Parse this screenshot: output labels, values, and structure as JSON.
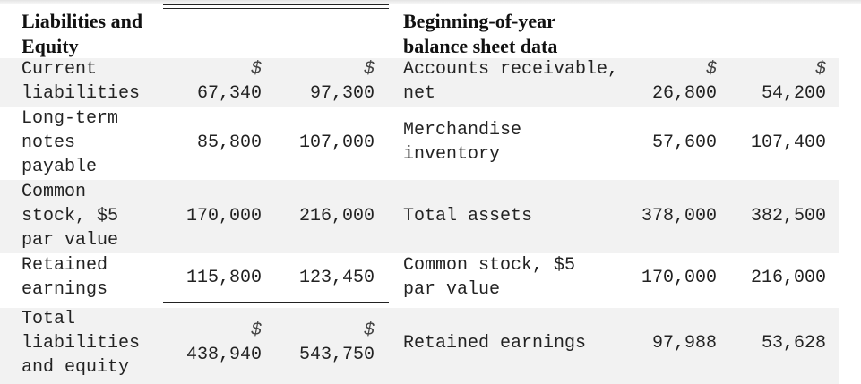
{
  "left_table": {
    "header": "Liabilities and Equity",
    "rows": [
      {
        "label": "Current liabilities",
        "col1": "67,340",
        "col2": "97,300",
        "col1_dollar": "$",
        "col2_dollar": "$"
      },
      {
        "label": "Long-term notes payable",
        "col1": "85,800",
        "col2": "107,000"
      },
      {
        "label": "Common stock, $5 par value",
        "col1": "170,000",
        "col2": "216,000"
      },
      {
        "label": "Retained earnings",
        "col1": "115,800",
        "col2": "123,450"
      },
      {
        "label": "Total liabilities and equity",
        "col1": "438,940",
        "col2": "543,750",
        "col1_dollar": "$",
        "col2_dollar": "$"
      }
    ]
  },
  "right_table": {
    "header": "Beginning-of-year balance sheet data",
    "rows": [
      {
        "label": "Accounts receivable, net",
        "col1": "26,800",
        "col2": "54,200",
        "col1_dollar": "$",
        "col2_dollar": "$"
      },
      {
        "label": "Merchandise inventory",
        "col1": "57,600",
        "col2": "107,400"
      },
      {
        "label": "Total assets",
        "col1": "378,000",
        "col2": "382,500"
      },
      {
        "label": "Common stock, $5 par value",
        "col1": "170,000",
        "col2": "216,000"
      },
      {
        "label": "Retained earnings",
        "col1": "97,988",
        "col2": "53,628"
      }
    ]
  }
}
